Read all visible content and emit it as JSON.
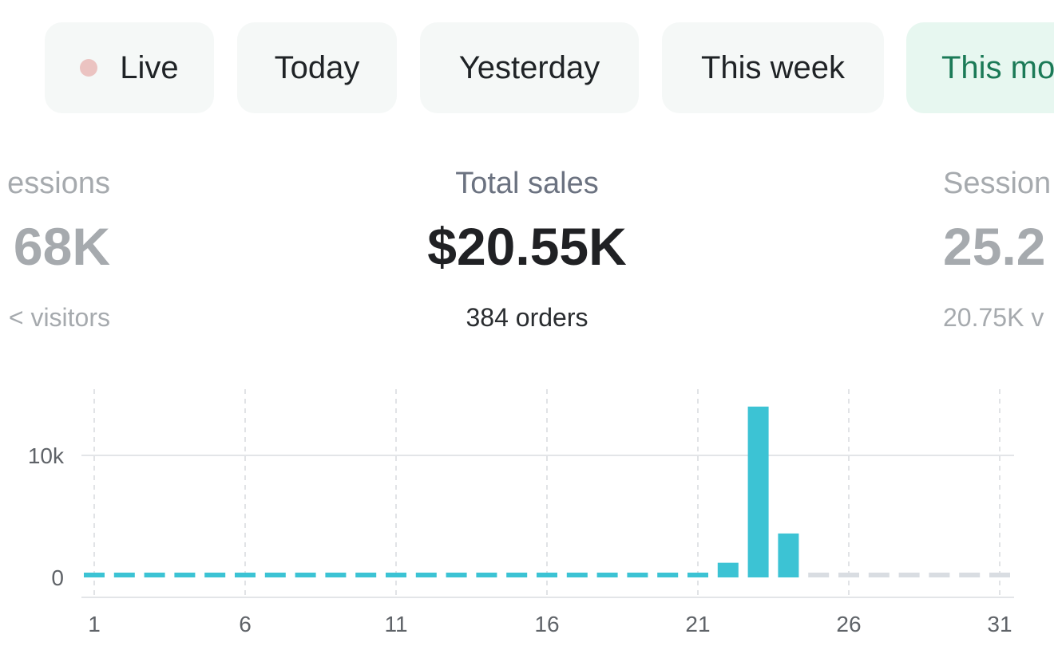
{
  "tabs": [
    {
      "label": "Live"
    },
    {
      "label": "Today"
    },
    {
      "label": "Yesterday"
    },
    {
      "label": "This week"
    },
    {
      "label": "This mo"
    }
  ],
  "metrics": {
    "left": {
      "label": "essions",
      "value": "68K",
      "sub": "< visitors"
    },
    "center": {
      "label": "Total sales",
      "value": "$20.55K",
      "sub": "384 orders"
    },
    "right": {
      "label": "Session",
      "value": "25.2",
      "sub": "20.75K v"
    }
  },
  "colors": {
    "bar": "#3cc3d4",
    "future": "#d9dde2",
    "live_dot": "#ebc3c1",
    "active_tab_bg": "#e7f7f0",
    "active_tab_text": "#1b7a57"
  },
  "chart_data": {
    "type": "bar",
    "x": [
      1,
      2,
      3,
      4,
      5,
      6,
      7,
      8,
      9,
      10,
      11,
      12,
      13,
      14,
      15,
      16,
      17,
      18,
      19,
      20,
      21,
      22,
      23,
      24,
      25,
      26,
      27,
      28,
      29,
      30,
      31
    ],
    "values": [
      0,
      0,
      0,
      0,
      0,
      0,
      0,
      0,
      0,
      0,
      0,
      0,
      0,
      0,
      0,
      0,
      0,
      0,
      0,
      0,
      0,
      1200,
      14000,
      3600,
      0,
      0,
      0,
      0,
      0,
      0,
      0
    ],
    "elapsed_days": 24,
    "xticks": [
      "1",
      "6",
      "11",
      "16",
      "21",
      "26",
      "31"
    ],
    "yticks": [
      {
        "value": 0,
        "label": "0"
      },
      {
        "value": 10000,
        "label": "10k"
      }
    ],
    "ylim": [
      0,
      15000
    ],
    "grid": true
  }
}
